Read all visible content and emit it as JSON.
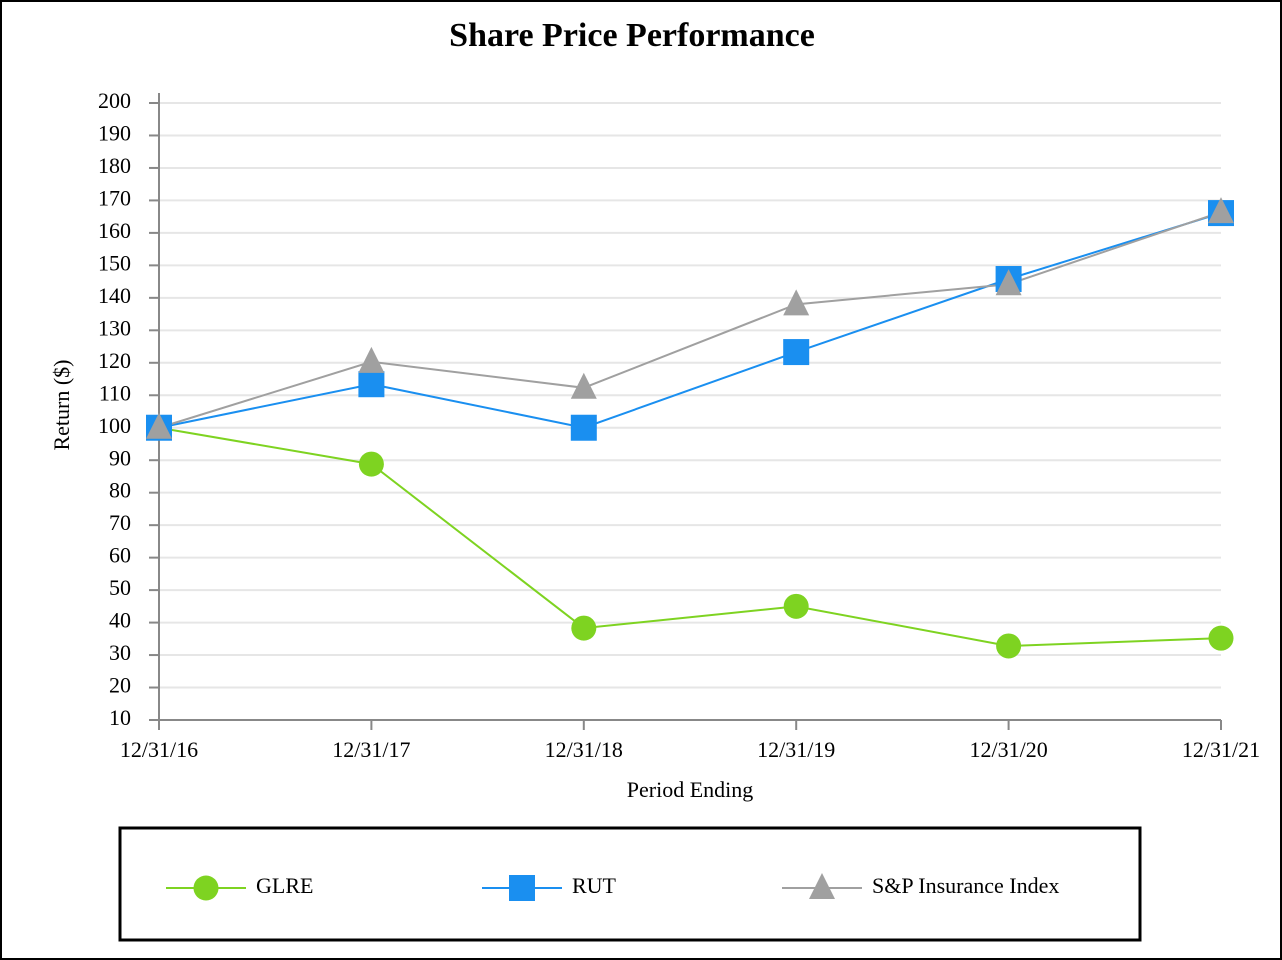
{
  "chart_data": {
    "type": "line",
    "title": "Share Price Performance",
    "x_label": "Period Ending",
    "y_label": "Return ($)",
    "categories": [
      "12/31/16",
      "12/31/17",
      "12/31/18",
      "12/31/19",
      "12/31/20",
      "12/31/21"
    ],
    "series": [
      {
        "name": "GLRE",
        "color": "#7ed321",
        "marker": "circle",
        "values": [
          100,
          88.8,
          38.3,
          45,
          32.8,
          35.2
        ]
      },
      {
        "name": "RUT",
        "color": "#1a8ff0",
        "marker": "square",
        "values": [
          100,
          113.4,
          100,
          123.3,
          145.8,
          166.1
        ]
      },
      {
        "name": "S&P Insurance Index",
        "color": "#a0a0a0",
        "marker": "triangle",
        "values": [
          100,
          120.3,
          112.3,
          138,
          144.2,
          166.4
        ]
      }
    ],
    "ylim": [
      10,
      200
    ],
    "yticks": [
      10,
      20,
      30,
      40,
      50,
      60,
      70,
      80,
      90,
      100,
      110,
      120,
      130,
      140,
      150,
      160,
      170,
      180,
      190,
      200
    ],
    "grid": true,
    "legend": "bottom"
  }
}
